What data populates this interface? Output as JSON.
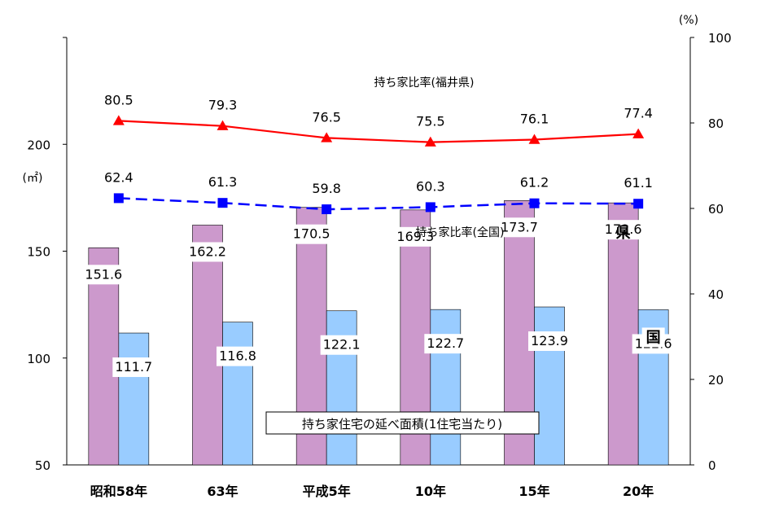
{
  "chart_data": {
    "type": "bar+line",
    "categories": [
      "昭和58年",
      "63年",
      "平成5年",
      "10年",
      "15年",
      "20年"
    ],
    "bars": {
      "label": "持ち家住宅の延べ面積(1住宅当たり)",
      "series": [
        {
          "name": "県",
          "values": [
            151.6,
            162.2,
            170.5,
            169.3,
            173.7,
            172.6
          ],
          "color": "#cc99cc"
        },
        {
          "name": "国",
          "values": [
            111.7,
            116.8,
            122.1,
            122.7,
            123.9,
            122.6
          ],
          "color": "#99ccff"
        }
      ],
      "axis": {
        "unit": "(㎡)",
        "min": 50,
        "max": 250,
        "ticks": [
          50,
          100,
          150,
          200
        ]
      }
    },
    "lines": {
      "series": [
        {
          "name": "持ち家比率(福井県)",
          "values": [
            80.5,
            79.3,
            76.5,
            75.5,
            76.1,
            77.4
          ],
          "color": "#ff0000",
          "marker": "triangle",
          "style": "solid"
        },
        {
          "name": "持ち家比率(全国)",
          "values": [
            62.4,
            61.3,
            59.8,
            60.3,
            61.2,
            61.1
          ],
          "color": "#0000ff",
          "marker": "square",
          "style": "dashed"
        }
      ],
      "axis": {
        "unit": "(%)",
        "min": 0,
        "max": 100,
        "ticks": [
          0,
          20,
          40,
          60,
          80,
          100
        ]
      }
    }
  }
}
